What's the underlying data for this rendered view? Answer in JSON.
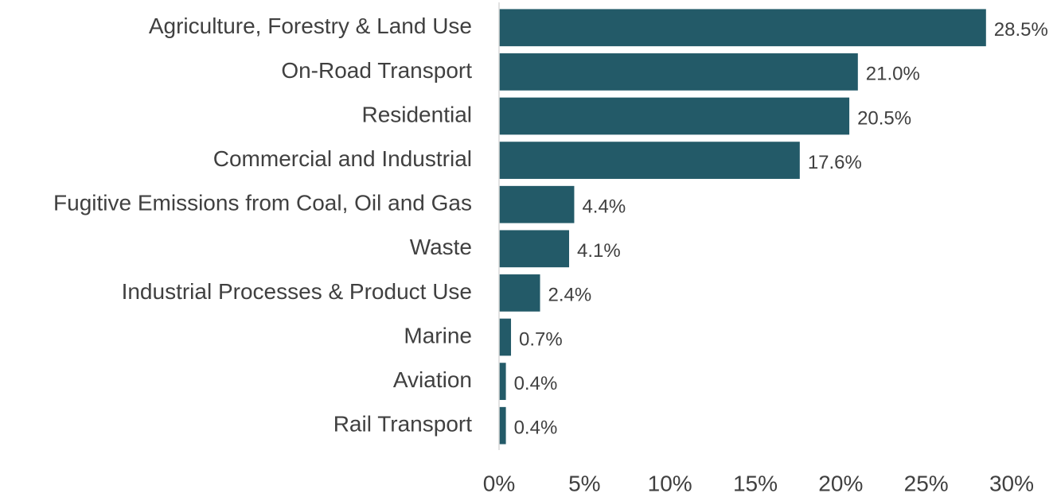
{
  "chart_data": {
    "type": "bar",
    "orientation": "horizontal",
    "categories": [
      "Agriculture, Forestry & Land Use",
      "On-Road Transport",
      "Residential",
      "Commercial and Industrial",
      "Fugitive Emissions from Coal, Oil and Gas",
      "Waste",
      "Industrial Processes & Product Use",
      "Marine",
      "Aviation",
      "Rail Transport"
    ],
    "values": [
      28.5,
      21.0,
      20.5,
      17.6,
      4.4,
      4.1,
      2.4,
      0.7,
      0.4,
      0.4
    ],
    "value_labels": [
      "28.5%",
      "21.0%",
      "20.5%",
      "17.6%",
      "4.4%",
      "4.1%",
      "2.4%",
      "0.7%",
      "0.4%",
      "0.4%"
    ],
    "color": "#235a68",
    "xlim": [
      0,
      30
    ],
    "xticks": [
      {
        "value": 0,
        "label": "0%"
      },
      {
        "value": 5,
        "label": "5%"
      },
      {
        "value": 10,
        "label": "10%"
      },
      {
        "value": 15,
        "label": "15%"
      },
      {
        "value": 20,
        "label": "20%"
      },
      {
        "value": 25,
        "label": "25%"
      },
      {
        "value": 30,
        "label": "30%"
      }
    ],
    "grid": false
  }
}
